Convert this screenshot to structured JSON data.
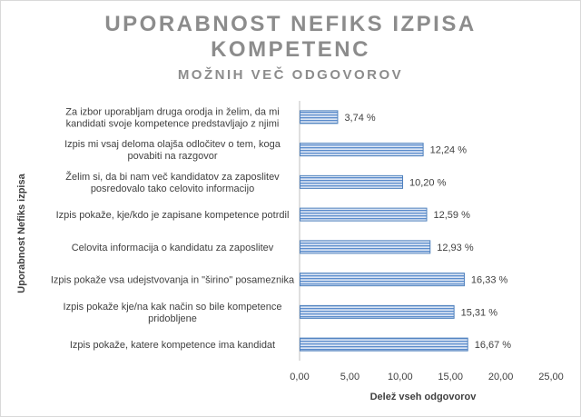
{
  "chart_data": {
    "type": "bar",
    "orientation": "horizontal",
    "title_lines": [
      "UPORABNOST NEFIKS IZPISA",
      "KOMPETENC"
    ],
    "subtitle": "MOŽNIH VEČ ODGOVOROV",
    "xlabel": "Delež vseh odgovorov",
    "ylabel": "Uporabnost Nefiks izpisa",
    "xlim": [
      0,
      25
    ],
    "xticks": [
      "0,00",
      "5,00",
      "10,00",
      "15,00",
      "20,00",
      "25,00"
    ],
    "grid": false,
    "legend": "none",
    "bar_color": "#4f81bd",
    "categories": [
      [
        "Za izbor uporabljam druga orodja in želim, da mi",
        "kandidati svoje kompetence predstavljajo z njimi"
      ],
      [
        "Izpis mi vsaj deloma olajša odločitev o tem, koga",
        "povabiti na razgovor"
      ],
      [
        "Želim si, da bi nam več kandidatov za zaposlitev",
        "posredovalo tako celovito informacijo"
      ],
      [
        "Izpis pokaže, kje/kdo je zapisane kompetence potrdil"
      ],
      [
        "Celovita informacija o kandidatu za zaposlitev"
      ],
      [
        "Izpis pokaže vsa udejstvovanja in \"širino\" posameznika"
      ],
      [
        "Izpis pokaže kje/na kak način so bile kompetence",
        "pridobljene"
      ],
      [
        "Izpis pokaže, katere kompetence ima kandidat"
      ]
    ],
    "values": [
      3.74,
      12.24,
      10.2,
      12.59,
      12.93,
      16.33,
      15.31,
      16.67
    ],
    "value_labels": [
      "3,74 %",
      "12,24 %",
      "10,20 %",
      "12,59 %",
      "12,93 %",
      "16,33 %",
      "15,31 %",
      "16,67 %"
    ]
  }
}
